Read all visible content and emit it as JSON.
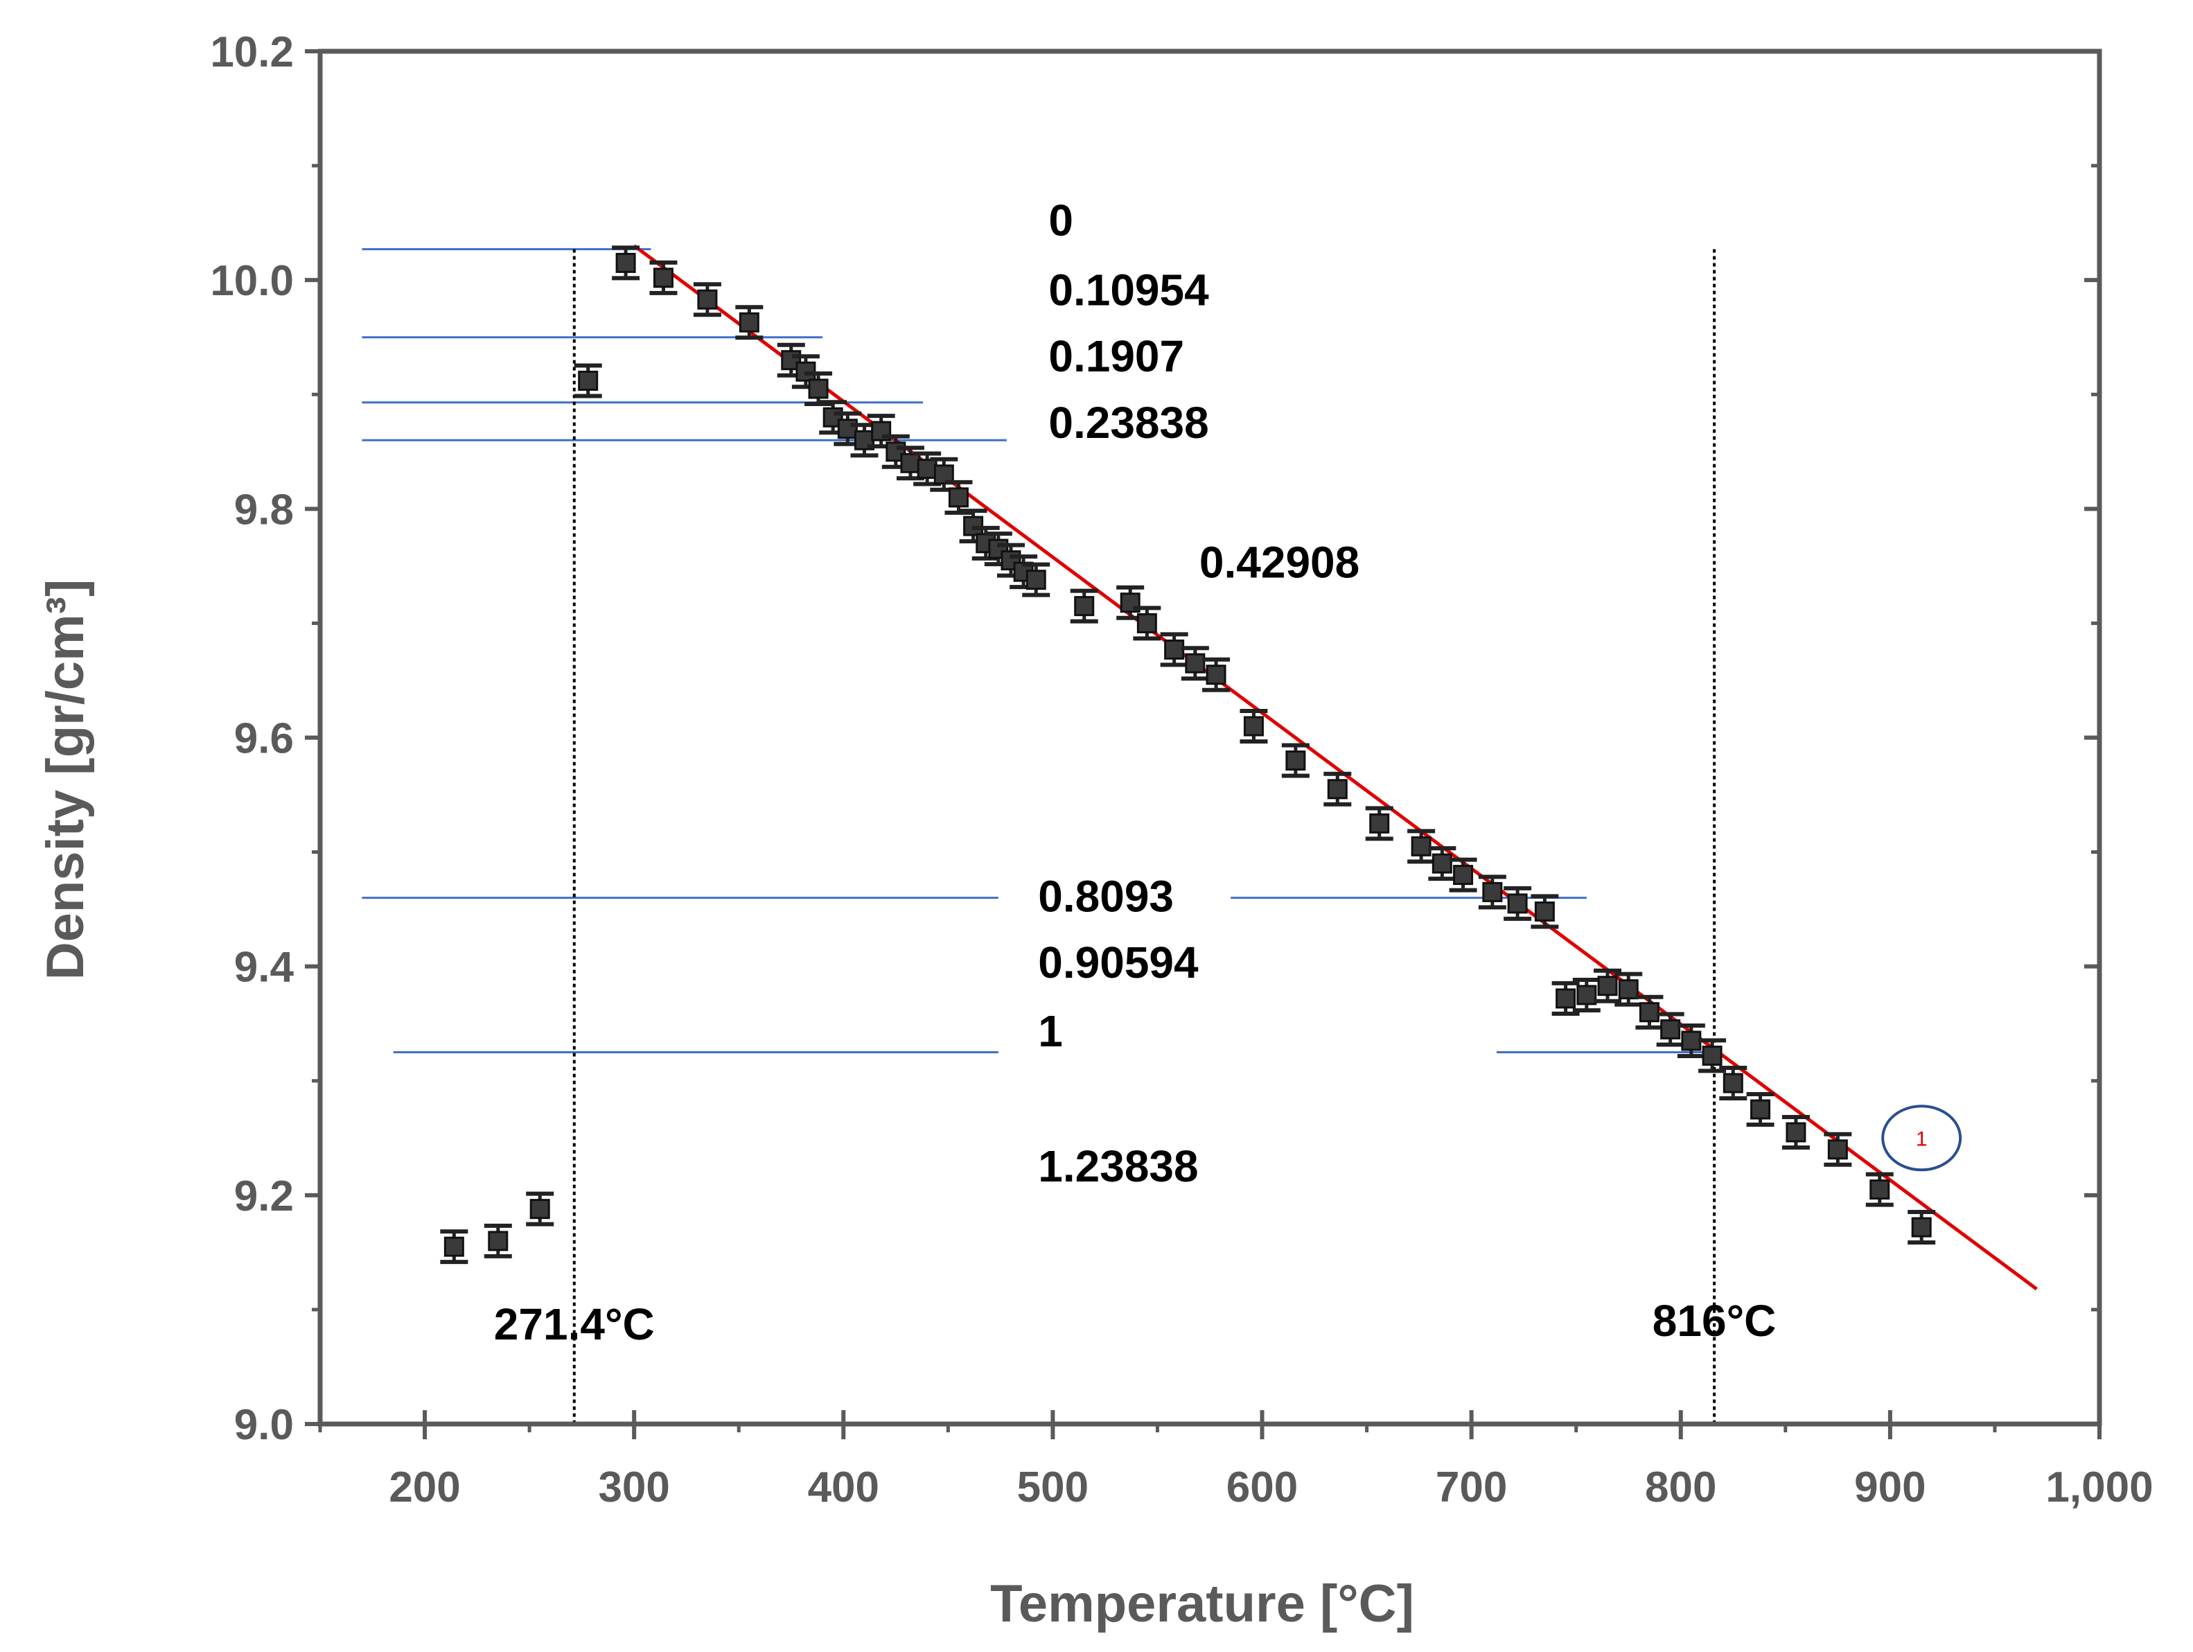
{
  "chart_data": {
    "type": "scatter",
    "title": "",
    "xlabel": "Temperature [°C]",
    "ylabel": "Density [gr/cm³]",
    "xlim": [
      150,
      1000
    ],
    "ylim": [
      9.0,
      10.2
    ],
    "x_ticks": [
      200,
      300,
      400,
      500,
      600,
      700,
      800,
      900,
      1000
    ],
    "x_tick_labels": [
      "200",
      "300",
      "400",
      "500",
      "600",
      "700",
      "800",
      "900",
      "1,000"
    ],
    "y_ticks": [
      9.0,
      9.2,
      9.4,
      9.6,
      9.8,
      10.0,
      10.2
    ],
    "y_tick_labels": [
      "9.0",
      "9.2",
      "9.4",
      "9.6",
      "9.8",
      "10.0",
      "10.2"
    ],
    "grid": false,
    "series": [
      {
        "name": "Density",
        "x": [
          214,
          235,
          255,
          278,
          296,
          314,
          335,
          355,
          375,
          382,
          388,
          395,
          402,
          410,
          418,
          425,
          432,
          440,
          448,
          455,
          462,
          468,
          474,
          480,
          486,
          492,
          515,
          537,
          545,
          558,
          568,
          578,
          596,
          616,
          636,
          656,
          676,
          686,
          696,
          710,
          722,
          735,
          745,
          755,
          765,
          775,
          785,
          795,
          805,
          815,
          825,
          838,
          855,
          875,
          895,
          915
        ],
        "y": [
          9.155,
          9.16,
          9.188,
          9.912,
          10.015,
          10.002,
          9.983,
          9.963,
          9.93,
          9.92,
          9.905,
          9.88,
          9.87,
          9.86,
          9.868,
          9.85,
          9.84,
          9.835,
          9.83,
          9.81,
          9.785,
          9.77,
          9.765,
          9.755,
          9.745,
          9.738,
          9.715,
          9.718,
          9.7,
          9.677,
          9.665,
          9.655,
          9.61,
          9.58,
          9.555,
          9.525,
          9.505,
          9.49,
          9.48,
          9.465,
          9.455,
          9.448,
          9.372,
          9.375,
          9.383,
          9.38,
          9.36,
          9.345,
          9.335,
          9.322,
          9.298,
          9.275,
          9.255,
          9.24,
          9.205,
          9.172
        ]
      }
    ],
    "fit_line": {
      "x1": 300,
      "y1": 10.03,
      "x2": 970,
      "y2": 9.118,
      "color": "#e00000"
    },
    "reference_lines": [
      {
        "y": 10.027,
        "x_segments": [
          [
            170,
            308
          ]
        ]
      },
      {
        "y": 9.95,
        "x_segments": [
          [
            170,
            390
          ]
        ]
      },
      {
        "y": 9.893,
        "x_segments": [
          [
            170,
            438
          ]
        ]
      },
      {
        "y": 9.86,
        "x_segments": [
          [
            170,
            478
          ]
        ]
      },
      {
        "y": 9.46,
        "x_segments": [
          [
            170,
            474
          ],
          [
            585,
            755
          ]
        ]
      },
      {
        "y": 9.325,
        "x_segments": [
          [
            185,
            474
          ],
          [
            712,
            815
          ]
        ]
      }
    ],
    "vertical_lines": [
      271.4,
      816
    ],
    "annotations": [
      {
        "text": "0",
        "x": 498,
        "y": 10.039
      },
      {
        "text": "0.10954",
        "x": 498,
        "y": 9.978
      },
      {
        "text": "0.1907",
        "x": 498,
        "y": 9.92
      },
      {
        "text": "0.23838",
        "x": 498,
        "y": 9.862
      },
      {
        "text": "0.42908",
        "x": 570,
        "y": 9.74
      },
      {
        "text": "0.8093",
        "x": 493,
        "y": 9.448
      },
      {
        "text": "0.90594",
        "x": 493,
        "y": 9.39
      },
      {
        "text": "1",
        "x": 493,
        "y": 9.33
      },
      {
        "text": "1.23838",
        "x": 493,
        "y": 9.212
      },
      {
        "text": "271.4°C",
        "x": 271.4,
        "y": 9.074
      },
      {
        "text": "816°C",
        "x": 816,
        "y": 9.077
      }
    ],
    "marker": {
      "label": "1",
      "x": 915,
      "y": 9.25
    }
  }
}
